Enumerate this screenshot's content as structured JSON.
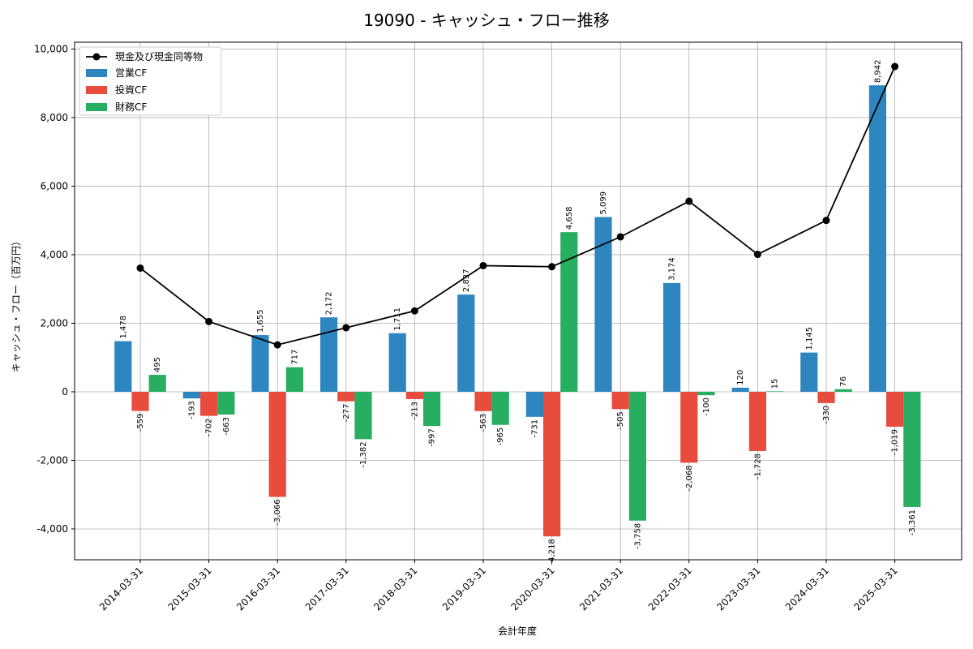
{
  "chart_data": {
    "type": "bar",
    "title": "19090 - キャッシュ・フロー推移",
    "xlabel": "会計年度",
    "ylabel": "キャッシュ・フロー（百万円）",
    "ylim": [
      -4900,
      10200
    ],
    "yticks": [
      -4000,
      -2000,
      0,
      2000,
      4000,
      6000,
      8000,
      10000
    ],
    "ytick_labels": [
      "-4,000",
      "-2,000",
      "0",
      "2,000",
      "4,000",
      "6,000",
      "8,000",
      "10,000"
    ],
    "grid": true,
    "legend_position": "top-left",
    "categories": [
      "2014-03-31",
      "2015-03-31",
      "2016-03-31",
      "2017-03-31",
      "2018-03-31",
      "2019-03-31",
      "2020-03-31",
      "2021-03-31",
      "2022-03-31",
      "2023-03-31",
      "2024-03-31",
      "2025-03-31"
    ],
    "series": [
      {
        "name": "営業CF",
        "kind": "bar",
        "color": "#2e86c1",
        "values": [
          1478,
          -193,
          1655,
          2172,
          1711,
          2837,
          -731,
          5099,
          3174,
          120,
          1145,
          8942
        ],
        "labels": [
          "1,478",
          "-193",
          "1,655",
          "2,172",
          "1,711",
          "2,837",
          "-731",
          "5,099",
          "3,174",
          "120",
          "1,145",
          "8,942"
        ]
      },
      {
        "name": "投資CF",
        "kind": "bar",
        "color": "#e74c3c",
        "values": [
          -559,
          -702,
          -3066,
          -277,
          -213,
          -563,
          -4218,
          -505,
          -2068,
          -1728,
          -330,
          -1019
        ],
        "labels": [
          "-559",
          "-702",
          "-3,066",
          "-277",
          "-213",
          "-563",
          "-4,218",
          "-505",
          "-2,068",
          "-1,728",
          "-330",
          "-1,019"
        ]
      },
      {
        "name": "財務CF",
        "kind": "bar",
        "color": "#27ae60",
        "values": [
          495,
          -663,
          717,
          -1382,
          -997,
          -965,
          4658,
          -3758,
          -100,
          15,
          76,
          -3361
        ],
        "labels": [
          "495",
          "-663",
          "717",
          "-1,382",
          "-997",
          "-965",
          "4,658",
          "-3,758",
          "-100",
          "15",
          "76",
          "-3,361"
        ]
      },
      {
        "name": "現金及び現金同等物",
        "kind": "line",
        "color": "#000000",
        "values": [
          3610,
          2050,
          1370,
          1870,
          2360,
          3680,
          3650,
          4520,
          5560,
          4010,
          5000,
          9490
        ]
      }
    ]
  }
}
